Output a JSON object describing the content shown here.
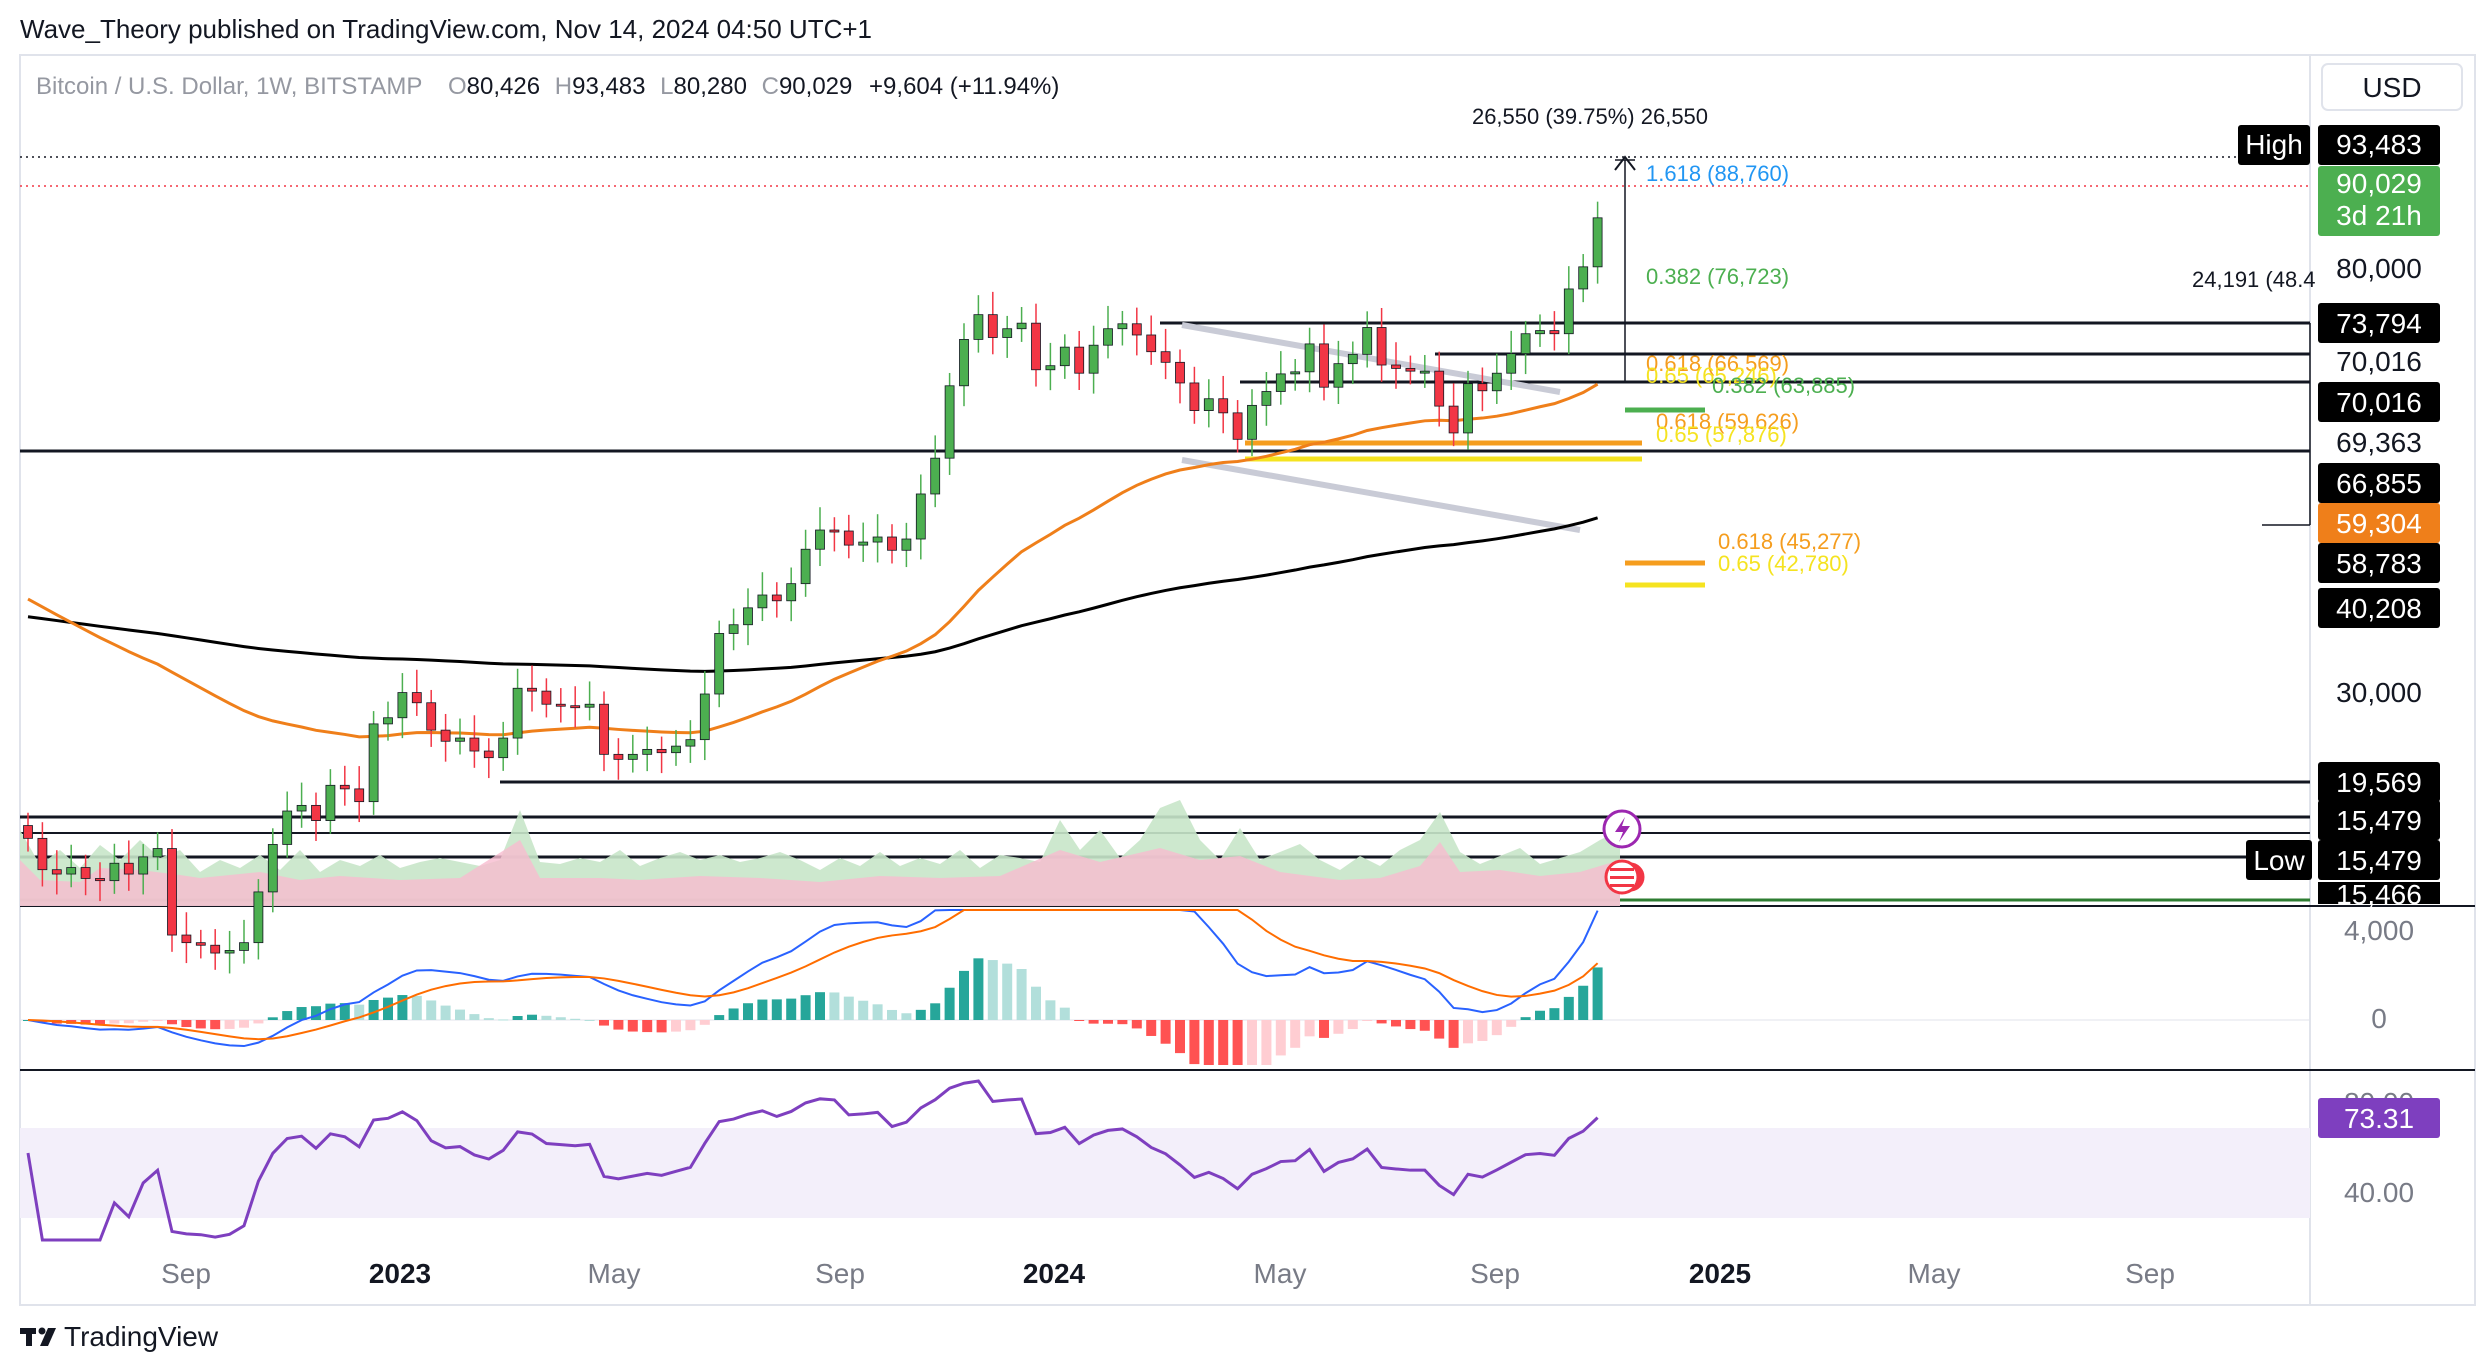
{
  "header": {
    "published": "Wave_Theory published on TradingView.com, Nov 14, 2024 04:50 UTC+1",
    "symbol": "Bitcoin / U.S. Dollar, 1W, BITSTAMP",
    "o_label": "O",
    "o": "80,426",
    "h_label": "H",
    "h": "93,483",
    "l_label": "L",
    "l": "80,280",
    "c_label": "C",
    "c": "90,029",
    "change": "+9,604 (+11.94%)",
    "currency": "USD"
  },
  "footer": {
    "brand": "TradingView",
    "logo": "tradingview-logo-icon"
  },
  "colors": {
    "bull": "#4caf50",
    "bear": "#f23645",
    "ema50": "#ef7f1a",
    "ema200": "#000000",
    "macd": "#2962ff",
    "signal": "#ff6d00",
    "rsi": "#7e3fbf",
    "fib_green": "#4caf50",
    "fib_orange": "#f59d1e",
    "fib_yellow": "#f5e320",
    "fib_blue": "#2196f3"
  },
  "chart_data": [
    {
      "type": "candlestick",
      "timeframe": "1W",
      "x_ticks": [
        "Sep",
        "2023",
        "May",
        "Sep",
        "2024",
        "May",
        "Sep",
        "2025",
        "May",
        "Sep"
      ],
      "y_ticks": [
        "80,000",
        "30,000"
      ],
      "y_scale": "log",
      "candles_approx_close": [
        21500,
        20000,
        19800,
        20100,
        19600,
        19500,
        20300,
        19800,
        20600,
        21000,
        17200,
        16900,
        16800,
        16500,
        16600,
        16900,
        19000,
        21200,
        22900,
        23200,
        22400,
        24300,
        24100,
        23400,
        28000,
        28400,
        30100,
        29400,
        27600,
        26900,
        27100,
        26300,
        25900,
        27100,
        30400,
        30200,
        29300,
        29200,
        29100,
        29300,
        26100,
        25800,
        26100,
        26400,
        26200,
        26600,
        27000,
        30000,
        34500,
        35200,
        36600,
        37700,
        37200,
        38700,
        41900,
        43800,
        43700,
        42300,
        42600,
        43100,
        41800,
        42900,
        47600,
        51700,
        61100,
        68000,
        72000,
        68300,
        69700,
        70600,
        63400,
        64000,
        66800,
        62900,
        67100,
        69700,
        70500,
        68700,
        66100,
        64500,
        61500,
        57700,
        59300,
        57400,
        54000,
        58400,
        60300,
        62800,
        63100,
        67300,
        60900,
        64300,
        65700,
        69900,
        64100,
        63600,
        63200,
        63200,
        58300,
        54800,
        61400,
        60400,
        62900,
        65800,
        68900,
        69400,
        68900,
        76400,
        80400,
        90029
      ],
      "markers": [
        "High 93,483",
        "Low 15,479"
      ]
    },
    {
      "type": "histogram",
      "name": "Volume",
      "note": "volume area with colored fills"
    },
    {
      "type": "line",
      "name": "MACD",
      "y_ticks": [
        "4,000",
        "0"
      ]
    },
    {
      "type": "line",
      "name": "RSI",
      "y_ticks": [
        "40.00"
      ],
      "last": "73.31"
    }
  ],
  "annotations": {
    "measure_top": "26,550 (39.75%) 26,550",
    "measure_right": "24,191 (48.4",
    "fib_1618": "1.618 (88,760)",
    "fib_0382_top": "0.382 (76,723)",
    "fib_0618_mid": "0.618 (66,569)",
    "fib_065_mid": "0.65 (65,246)",
    "fib_0382_mid": "0.382 (63,885)",
    "fib_0618_low": "0.618 (59,626)",
    "fib_065_low": "0.65 (57,876)",
    "fib_0618_bottom": "0.618 (45,277)",
    "fib_065_bottom": "0.65 (42,780)"
  },
  "price_tags": {
    "high_label": "High",
    "high": "93,483",
    "last": "90,029",
    "countdown": "3d 21h",
    "t80000": "80,000",
    "t73794": "73,794",
    "t70016a": "70,016",
    "t70016b": "70,016",
    "t69363": "69,363",
    "t66855": "66,855",
    "t59304": "59,304",
    "t58783": "58,783",
    "t40208": "40,208",
    "t30000": "30,000",
    "t19569": "19,569",
    "t15479a": "15,479",
    "low_label": "Low",
    "t15479b": "15,479",
    "t15466": "15,466",
    "macd_4000": "4,000",
    "macd_0": "0",
    "rsi_top": "80.00",
    "rsi_last": "73.31",
    "rsi_40": "40.00"
  }
}
